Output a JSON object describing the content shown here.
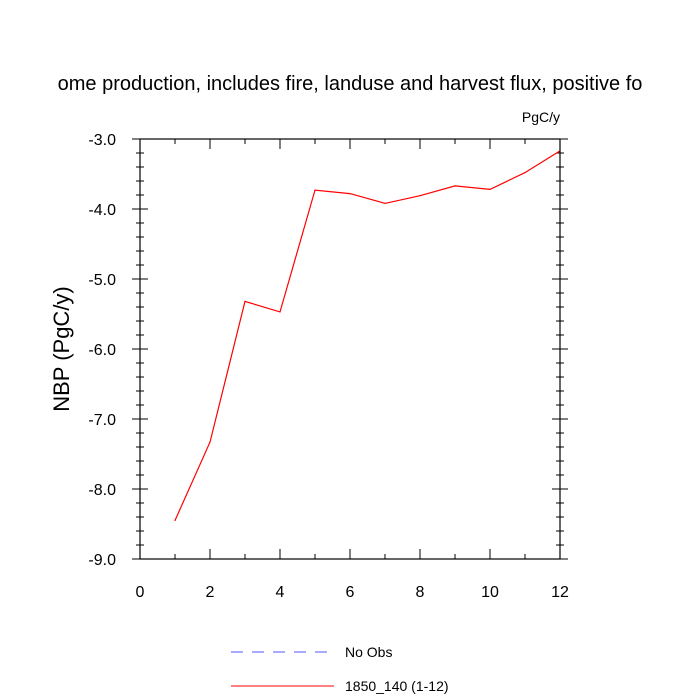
{
  "chart_data": {
    "type": "line",
    "title": "ome production, includes fire, landuse and harvest flux, positive fo",
    "units": "PgC/y",
    "xlabel": "",
    "ylabel": "NBP  (PgC/y)",
    "xlim": [
      0,
      12
    ],
    "ylim": [
      -9.0,
      -3.0
    ],
    "x_ticks": [
      "0",
      "2",
      "4",
      "6",
      "8",
      "10",
      "12"
    ],
    "y_ticks": [
      "-3.0",
      "-4.0",
      "-5.0",
      "-6.0",
      "-7.0",
      "-8.0",
      "-9.0"
    ],
    "grid": false,
    "legend_position": "bottom",
    "series": [
      {
        "name": "No Obs",
        "color": "#5555ff",
        "dash": "dashed",
        "x": [],
        "values": []
      },
      {
        "name": "1850_140 (1-12)",
        "color": "#ff0000",
        "dash": "solid",
        "x": [
          1,
          2,
          3,
          4,
          5,
          6,
          7,
          8,
          9,
          10,
          11,
          12
        ],
        "values": [
          -8.45,
          -7.33,
          -5.32,
          -5.47,
          -3.73,
          -3.78,
          -3.92,
          -3.81,
          -3.67,
          -3.72,
          -3.48,
          -3.17
        ]
      }
    ]
  }
}
